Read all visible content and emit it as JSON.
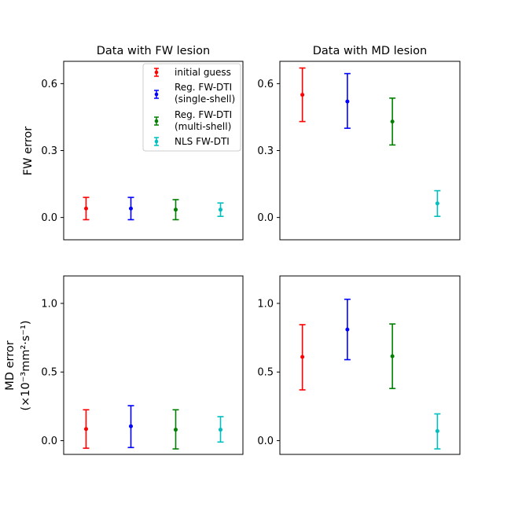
{
  "figure": {
    "ylabel_top": "FW error",
    "ylabel_bottom_line1": "MD error",
    "ylabel_bottom_line2": "(×10⁻³mm²·s⁻¹)"
  },
  "legend": [
    {
      "label": "initial guess",
      "color": "#ff0000"
    },
    {
      "label": "Reg. FW-DTI\n(single-shell)",
      "color": "#0000ff"
    },
    {
      "label": "Reg. FW-DTI\n(multi-shell)",
      "color": "#008000"
    },
    {
      "label": "NLS FW-DTI",
      "color": "#00bfbf"
    }
  ],
  "chart_data": [
    {
      "type": "scatter",
      "title": "Data with FW lesion",
      "ylabel": "FW error",
      "ylim": [
        -0.1,
        0.7
      ],
      "yticks": [
        0.0,
        0.3,
        0.6
      ],
      "ytick_labels": [
        "0.0",
        "0.3",
        "0.6"
      ],
      "x": [
        1,
        2,
        3,
        4
      ],
      "series": [
        {
          "name": "initial guess",
          "color": "#ff0000",
          "value": 0.04,
          "lower": -0.01,
          "upper": 0.09
        },
        {
          "name": "Reg. FW-DTI (single-shell)",
          "color": "#0000ff",
          "value": 0.04,
          "lower": -0.01,
          "upper": 0.09
        },
        {
          "name": "Reg. FW-DTI (multi-shell)",
          "color": "#008000",
          "value": 0.035,
          "lower": -0.01,
          "upper": 0.08
        },
        {
          "name": "NLS FW-DTI",
          "color": "#00bfbf",
          "value": 0.035,
          "lower": 0.005,
          "upper": 0.065
        }
      ]
    },
    {
      "type": "scatter",
      "title": "Data with MD lesion",
      "ylabel": "",
      "ylim": [
        -0.1,
        0.7
      ],
      "yticks": [
        0.0,
        0.3,
        0.6
      ],
      "ytick_labels": [
        "0.0",
        "0.3",
        "0.6"
      ],
      "x": [
        1,
        2,
        3,
        4
      ],
      "series": [
        {
          "name": "initial guess",
          "color": "#ff0000",
          "value": 0.55,
          "lower": 0.43,
          "upper": 0.67
        },
        {
          "name": "Reg. FW-DTI (single-shell)",
          "color": "#0000ff",
          "value": 0.52,
          "lower": 0.4,
          "upper": 0.645
        },
        {
          "name": "Reg. FW-DTI (multi-shell)",
          "color": "#008000",
          "value": 0.43,
          "lower": 0.325,
          "upper": 0.535
        },
        {
          "name": "NLS FW-DTI",
          "color": "#00bfbf",
          "value": 0.063,
          "lower": 0.005,
          "upper": 0.12
        }
      ]
    },
    {
      "type": "scatter",
      "title": "",
      "ylabel": "MD error (×10⁻³mm²·s⁻¹)",
      "ylim": [
        -0.1,
        1.2
      ],
      "yticks": [
        0.0,
        0.5,
        1.0
      ],
      "ytick_labels": [
        "0.0",
        "0.5",
        "1.0"
      ],
      "x": [
        1,
        2,
        3,
        4
      ],
      "series": [
        {
          "name": "initial guess",
          "color": "#ff0000",
          "value": 0.085,
          "lower": -0.055,
          "upper": 0.225
        },
        {
          "name": "Reg. FW-DTI (single-shell)",
          "color": "#0000ff",
          "value": 0.105,
          "lower": -0.05,
          "upper": 0.255
        },
        {
          "name": "Reg. FW-DTI (multi-shell)",
          "color": "#008000",
          "value": 0.08,
          "lower": -0.06,
          "upper": 0.225
        },
        {
          "name": "NLS FW-DTI",
          "color": "#00bfbf",
          "value": 0.08,
          "lower": -0.01,
          "upper": 0.175
        }
      ]
    },
    {
      "type": "scatter",
      "title": "",
      "ylabel": "",
      "ylim": [
        -0.1,
        1.2
      ],
      "yticks": [
        0.0,
        0.5,
        1.0
      ],
      "ytick_labels": [
        "0.0",
        "0.5",
        "1.0"
      ],
      "x": [
        1,
        2,
        3,
        4
      ],
      "series": [
        {
          "name": "initial guess",
          "color": "#ff0000",
          "value": 0.61,
          "lower": 0.37,
          "upper": 0.845
        },
        {
          "name": "Reg. FW-DTI (single-shell)",
          "color": "#0000ff",
          "value": 0.81,
          "lower": 0.59,
          "upper": 1.03
        },
        {
          "name": "Reg. FW-DTI (multi-shell)",
          "color": "#008000",
          "value": 0.615,
          "lower": 0.38,
          "upper": 0.85
        },
        {
          "name": "NLS FW-DTI",
          "color": "#00bfbf",
          "value": 0.07,
          "lower": -0.06,
          "upper": 0.195
        }
      ]
    }
  ]
}
